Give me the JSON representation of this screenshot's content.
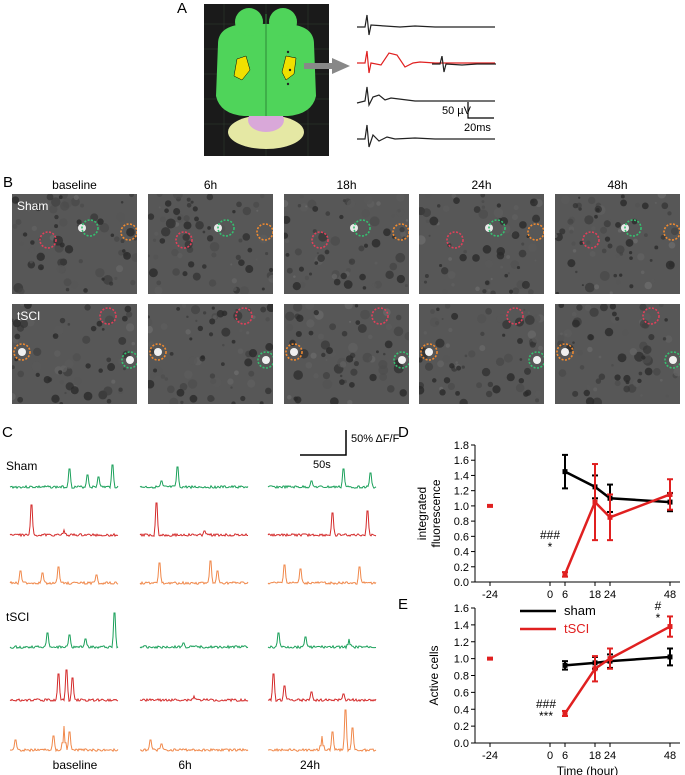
{
  "panels": {
    "A": "A",
    "B": "B",
    "C": "C",
    "D": "D",
    "E": "E"
  },
  "panelA": {
    "scale_amp": "50 µV",
    "scale_time": "20ms",
    "brain_colors": {
      "cortex": "#4fd45a",
      "cerebellum": "#e5e8a4",
      "pons": "#d9a8d9",
      "lesion": "#f0e000"
    }
  },
  "panelB": {
    "timepoints": [
      "baseline",
      "6h",
      "18h",
      "24h",
      "48h"
    ],
    "rows": [
      "Sham",
      "tSCI"
    ],
    "circle_colors": {
      "red": "#e0405a",
      "green": "#35c070",
      "orange": "#f08a30"
    }
  },
  "panelC": {
    "scale_y": "50% ΔF/F",
    "scale_x": "50s",
    "groups": [
      "Sham",
      "tSCI"
    ],
    "timepoints": [
      "baseline",
      "6h",
      "24h"
    ],
    "trace_colors": [
      "#1aa05a",
      "#d42a2a",
      "#f0884a"
    ]
  },
  "chart_data": [
    {
      "type": "line",
      "panel": "D",
      "ylabel": "integrated fluorescence",
      "xlabel": "",
      "x_ticks": [
        "-24",
        "0",
        "6",
        "18",
        "24",
        "48"
      ],
      "y_ticks": [
        "0.0",
        "0.2",
        "0.4",
        "0.6",
        "0.8",
        "1.0",
        "1.2",
        "1.4",
        "1.6",
        "1.8"
      ],
      "ylim": [
        0,
        1.8
      ],
      "baseline_point": {
        "x": -24,
        "y": 1.0
      },
      "series": [
        {
          "name": "sham",
          "color": "#000000",
          "x": [
            6,
            18,
            24,
            48
          ],
          "y": [
            1.45,
            1.25,
            1.1,
            1.05
          ],
          "err": [
            0.22,
            0.15,
            0.18,
            0.12
          ]
        },
        {
          "name": "tSCI",
          "color": "#e02020",
          "x": [
            6,
            18,
            24,
            48
          ],
          "y": [
            0.1,
            1.05,
            0.85,
            1.15
          ],
          "err": [
            0.03,
            0.5,
            0.3,
            0.2
          ]
        }
      ],
      "annotations": [
        {
          "x": 6,
          "text": "###"
        },
        {
          "x": 6,
          "text": "*"
        }
      ]
    },
    {
      "type": "line",
      "panel": "E",
      "ylabel": "Active cells",
      "xlabel": "Time (hour)",
      "x_ticks": [
        "-24",
        "0",
        "6",
        "18",
        "24",
        "48"
      ],
      "y_ticks": [
        "0.0",
        "0.2",
        "0.4",
        "0.6",
        "0.8",
        "1.0",
        "1.2",
        "1.4",
        "1.6"
      ],
      "ylim": [
        0,
        1.6
      ],
      "legend": "top",
      "baseline_point": {
        "x": -24,
        "y": 1.0
      },
      "series": [
        {
          "name": "sham",
          "color": "#000000",
          "x": [
            6,
            18,
            24,
            48
          ],
          "y": [
            0.92,
            0.95,
            0.97,
            1.02
          ],
          "err": [
            0.05,
            0.07,
            0.08,
            0.1
          ]
        },
        {
          "name": "tSCI",
          "color": "#e02020",
          "x": [
            6,
            18,
            24,
            48
          ],
          "y": [
            0.35,
            0.88,
            1.0,
            1.38
          ],
          "err": [
            0.03,
            0.15,
            0.12,
            0.12
          ]
        }
      ],
      "annotations": [
        {
          "x": 6,
          "text": "###"
        },
        {
          "x": 6,
          "text": "***"
        },
        {
          "x": 48,
          "text": "#"
        },
        {
          "x": 48,
          "text": "*"
        }
      ]
    }
  ]
}
